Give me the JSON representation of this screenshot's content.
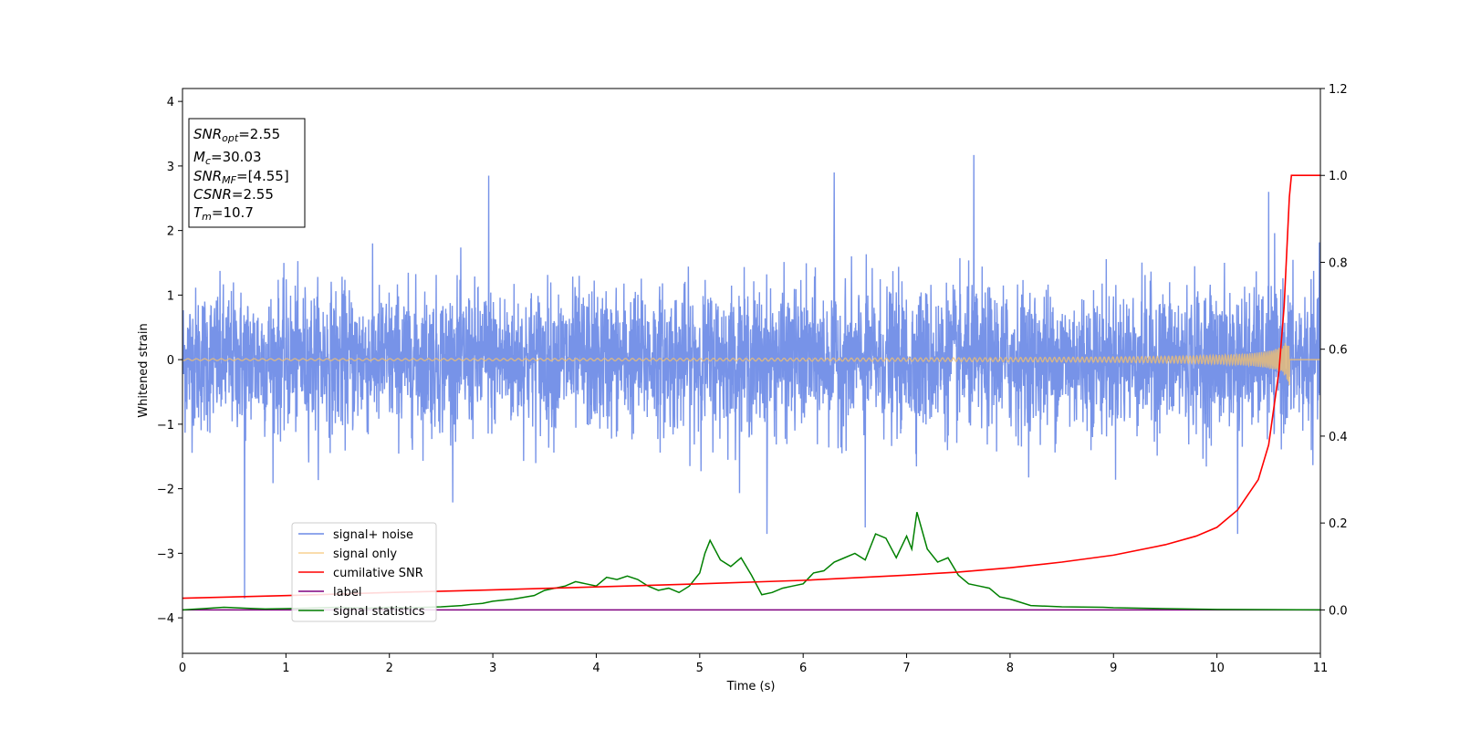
{
  "chart_data": {
    "type": "line",
    "xlabel": "Time (s)",
    "ylabel_left": "Whitened strain",
    "ylabel_right": "",
    "xlim": [
      0,
      11
    ],
    "ylim_left": [
      -4.55,
      4.2
    ],
    "ylim_right": [
      -0.1,
      1.2
    ],
    "x_ticks": [
      0,
      1,
      2,
      3,
      4,
      5,
      6,
      7,
      8,
      9,
      10,
      11
    ],
    "y_ticks_left": [
      -4,
      -3,
      -2,
      -1,
      0,
      1,
      2,
      3,
      4
    ],
    "y_ticks_right": [
      0.0,
      0.2,
      0.4,
      0.6,
      0.8,
      1.0,
      1.2
    ],
    "legend_position": "lower-left",
    "series": [
      {
        "name": "signal+ noise",
        "color": "#6b8ae6",
        "axis": "left",
        "description": "whitened noise, sigma about 0.55, dense samples",
        "noise_sigma": 0.55,
        "peaks": [
          {
            "x": 0.6,
            "y": -3.7
          },
          {
            "x": 2.96,
            "y": 2.85
          },
          {
            "x": 6.3,
            "y": 2.9
          },
          {
            "x": 7.65,
            "y": 3.17
          },
          {
            "x": 5.65,
            "y": -2.7
          },
          {
            "x": 6.6,
            "y": -2.6
          },
          {
            "x": 10.2,
            "y": -2.7
          },
          {
            "x": 10.5,
            "y": 2.6
          }
        ]
      },
      {
        "name": "signal only",
        "color": "#f5c26b",
        "axis": "left",
        "chirp_end_time": 10.7,
        "chirp_peak_amplitude": 0.4
      },
      {
        "name": "cumilative SNR",
        "color": "#ff0000",
        "axis": "right",
        "x": [
          0,
          1,
          2,
          3,
          4,
          5,
          6,
          7,
          7.5,
          8,
          8.5,
          9,
          9.5,
          9.8,
          10,
          10.2,
          10.4,
          10.5,
          10.6,
          10.65,
          10.7,
          10.72,
          11
        ],
        "y": [
          0.027,
          0.033,
          0.04,
          0.046,
          0.053,
          0.06,
          0.068,
          0.08,
          0.087,
          0.097,
          0.11,
          0.126,
          0.15,
          0.17,
          0.19,
          0.23,
          0.3,
          0.38,
          0.55,
          0.7,
          0.95,
          1.0,
          1.0
        ]
      },
      {
        "name": "label",
        "color": "#800080",
        "axis": "right",
        "x": [
          0,
          11
        ],
        "y": [
          0.0,
          0.0
        ]
      },
      {
        "name": "signal statistics",
        "color": "#008000",
        "axis": "right",
        "x": [
          0,
          0.2,
          0.4,
          0.6,
          0.8,
          1.0,
          1.2,
          1.5,
          1.8,
          2.0,
          2.2,
          2.5,
          2.7,
          2.8,
          2.9,
          3.0,
          3.2,
          3.4,
          3.5,
          3.7,
          3.8,
          3.9,
          4.0,
          4.1,
          4.2,
          4.3,
          4.4,
          4.5,
          4.6,
          4.7,
          4.8,
          4.9,
          5.0,
          5.05,
          5.1,
          5.2,
          5.3,
          5.4,
          5.5,
          5.6,
          5.7,
          5.8,
          5.9,
          6.0,
          6.1,
          6.2,
          6.3,
          6.4,
          6.5,
          6.6,
          6.7,
          6.8,
          6.9,
          7.0,
          7.05,
          7.1,
          7.2,
          7.3,
          7.4,
          7.5,
          7.6,
          7.7,
          7.8,
          7.9,
          8.0,
          8.2,
          8.5,
          8.9,
          9.0,
          9.5,
          10.0,
          11.0
        ],
        "y": [
          0.0,
          0.003,
          0.006,
          0.004,
          0.002,
          0.003,
          0.004,
          0.006,
          0.004,
          0.006,
          0.005,
          0.007,
          0.01,
          0.013,
          0.015,
          0.02,
          0.025,
          0.033,
          0.045,
          0.055,
          0.065,
          0.06,
          0.055,
          0.075,
          0.07,
          0.078,
          0.07,
          0.055,
          0.045,
          0.05,
          0.04,
          0.055,
          0.085,
          0.13,
          0.16,
          0.115,
          0.1,
          0.12,
          0.08,
          0.035,
          0.04,
          0.05,
          0.055,
          0.06,
          0.085,
          0.09,
          0.11,
          0.12,
          0.13,
          0.115,
          0.175,
          0.165,
          0.12,
          0.17,
          0.14,
          0.225,
          0.14,
          0.11,
          0.12,
          0.08,
          0.06,
          0.055,
          0.05,
          0.03,
          0.025,
          0.01,
          0.007,
          0.006,
          0.005,
          0.003,
          0.001,
          0.0
        ]
      }
    ]
  },
  "info_box": {
    "snr_opt_name": "SNR",
    "snr_opt_sub": "opt",
    "snr_opt_value": "=2.55",
    "mc_name": "M",
    "mc_sub": "c",
    "mc_value": "=30.03",
    "snr_mf_name": "SNR",
    "snr_mf_sub": "MF",
    "snr_mf_value": "=[4.55]",
    "csnr_name": "CSNR",
    "csnr_value": "=2.55",
    "tm_name": "T",
    "tm_sub": "m",
    "tm_value": "=10.7"
  }
}
